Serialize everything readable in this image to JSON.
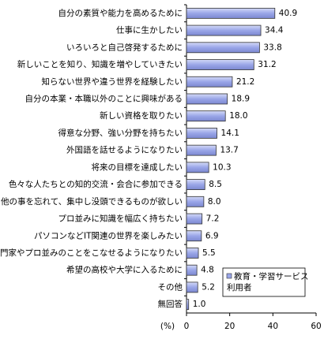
{
  "chart_data": {
    "type": "hbar",
    "categories": [
      "自分の素質や能力を高めるために",
      "仕事に生かしたい",
      "いろいろと自己啓発するために",
      "新しいことを知り、知識を増やしていきたい",
      "知らない世界や違う世界を経験したい",
      "自分の本業・本職以外のことに興味がある",
      "新しい資格を取りたい",
      "得意な分野、強い分野を持ちたい",
      "外国語を話せるようになりたい",
      "将来の目標を達成したい",
      "色々な人たちとの知的交流・会合に参加できる",
      "他の事を忘れて、集中し没頭できるものが欲しい",
      "プロ並みに知識を幅広く持ちたい",
      "パソコンなどIT関連の世界を楽しみたい",
      "専門家やプロ並みのことをこなせるようになりたい",
      "希望の高校や大学に入るために",
      "その他",
      "無回答"
    ],
    "series": [
      {
        "name": "教育・学習サービス利用者",
        "color": "#9aa6e8",
        "values": [
          40.9,
          34.4,
          33.8,
          31.2,
          21.2,
          18.9,
          18.0,
          14.1,
          13.7,
          10.3,
          8.5,
          8.0,
          7.2,
          6.9,
          5.5,
          4.8,
          5.2,
          1.0
        ],
        "value_labels": [
          "40.9",
          "34.4",
          "33.8",
          "31.2",
          "21.2",
          "18.9",
          "18.0",
          "14.1",
          "13.7",
          "10.3",
          "8.5",
          "8.0",
          "7.2",
          "6.9",
          "5.5",
          "4.8",
          "5.2",
          "1.0"
        ]
      }
    ],
    "xlabel": "(%)",
    "xlim": [
      0,
      60
    ],
    "xticks": [
      0,
      20,
      40,
      60
    ],
    "grid": false,
    "legend": "lower right"
  }
}
